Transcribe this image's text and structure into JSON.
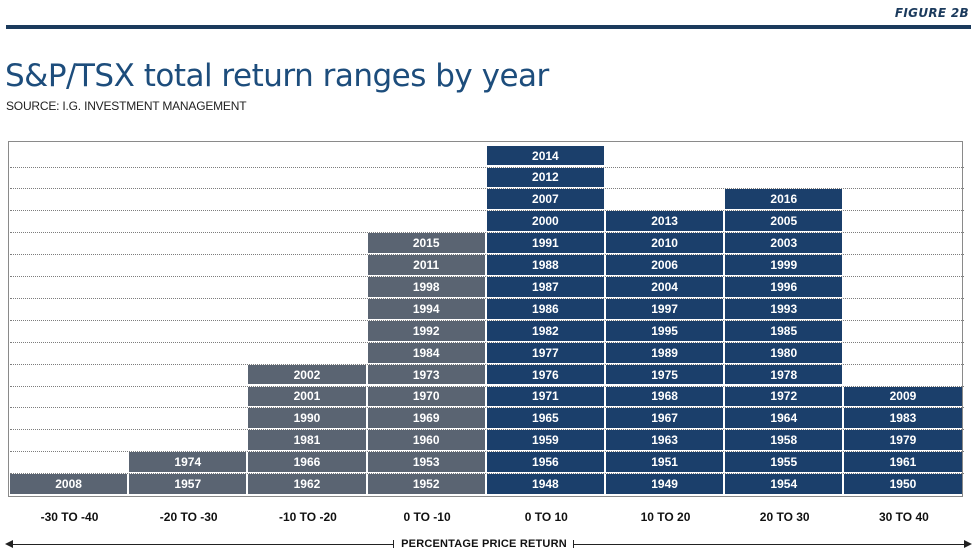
{
  "figure_label": "FIGURE 2B",
  "chart_data": {
    "type": "table",
    "title": "S&P/TSX total return ranges by year",
    "subtitle": "SOURCE: I.G. INVESTMENT MANAGEMENT",
    "xlabel": "PERCENTAGE PRICE RETURN",
    "grid": true,
    "colors": {
      "negative": "#5a6472",
      "positive": "#1b3f6b",
      "frame": "#1b3a5c"
    },
    "categories": [
      {
        "label": "-30 TO -40",
        "sign": "negative",
        "years": [
          "2008"
        ]
      },
      {
        "label": "-20 TO -30",
        "sign": "negative",
        "years": [
          "1957",
          "1974"
        ]
      },
      {
        "label": "-10 TO -20",
        "sign": "negative",
        "years": [
          "1962",
          "1966",
          "1981",
          "1990",
          "2001",
          "2002"
        ]
      },
      {
        "label": "0 TO -10",
        "sign": "negative",
        "years": [
          "1952",
          "1953",
          "1960",
          "1969",
          "1970",
          "1973",
          "1984",
          "1992",
          "1994",
          "1998",
          "2011",
          "2015"
        ]
      },
      {
        "label": "0 TO 10",
        "sign": "positive",
        "years": [
          "1948",
          "1956",
          "1959",
          "1965",
          "1971",
          "1976",
          "1977",
          "1982",
          "1986",
          "1987",
          "1988",
          "1991",
          "2000",
          "2007",
          "2012",
          "2014"
        ]
      },
      {
        "label": "10 TO 20",
        "sign": "positive",
        "years": [
          "1949",
          "1951",
          "1963",
          "1967",
          "1968",
          "1975",
          "1989",
          "1995",
          "1997",
          "2004",
          "2006",
          "2010",
          "2013"
        ]
      },
      {
        "label": "20 TO 30",
        "sign": "positive",
        "years": [
          "1954",
          "1955",
          "1958",
          "1964",
          "1972",
          "1978",
          "1980",
          "1985",
          "1993",
          "1996",
          "1999",
          "2003",
          "2005",
          "2016"
        ]
      },
      {
        "label": "30 TO 40",
        "sign": "positive",
        "years": [
          "1950",
          "1961",
          "1979",
          "1983",
          "2009"
        ]
      }
    ]
  }
}
